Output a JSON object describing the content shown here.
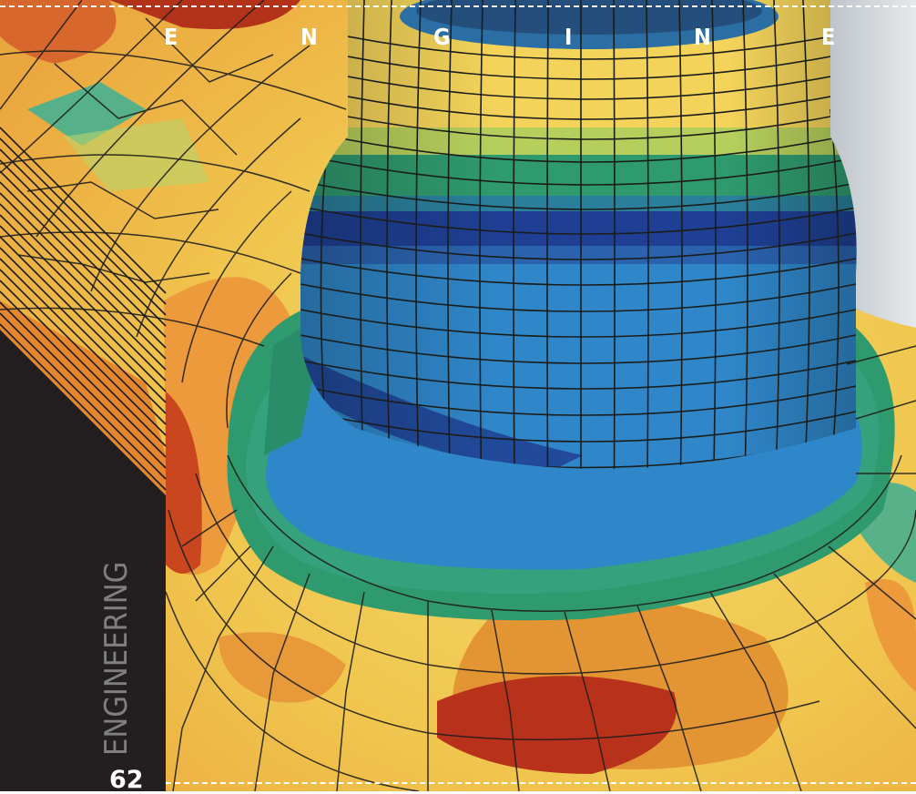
{
  "header": {
    "letters": [
      "E",
      "N",
      "G",
      "I",
      "N",
      "E"
    ]
  },
  "side": {
    "section_label": "ENGINEERING",
    "page_number": "62"
  },
  "colors": {
    "panel_dark": "#231f20",
    "label_gray": "#7f7f7f",
    "mesh_yellow": "#f4d45a",
    "mesh_orange": "#ec9a3c",
    "mesh_red": "#c23b1c",
    "mesh_green": "#2f9a6e",
    "mesh_blue": "#2f86c8",
    "mesh_navy": "#1e3f93"
  }
}
